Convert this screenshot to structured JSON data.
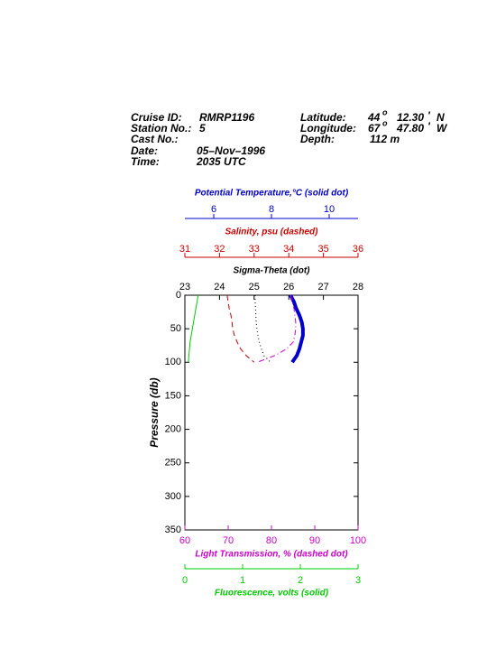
{
  "header": {
    "left": [
      {
        "label": "Cruise ID:",
        "value": "RMRP1196"
      },
      {
        "label": "Station No.:",
        "value": "5"
      },
      {
        "label": "Cast No.:"
      },
      {
        "label": "Date:",
        "value": "05–Nov–1996"
      },
      {
        "label": "Time:",
        "value": "2035 UTC"
      }
    ],
    "right": [
      {
        "label": "Latitude:",
        "degrees": "44",
        "degree_mark": "o",
        "minutes": "12.30",
        "minute_mark": "'",
        "hemisphere": "N"
      },
      {
        "label": "Longitude:",
        "degrees": "67",
        "degree_mark": "o",
        "minutes": "47.80",
        "minute_mark": "'",
        "hemisphere": "W"
      },
      {
        "label": "Depth:",
        "value": "112 m"
      }
    ]
  },
  "chart_data": {
    "type": "profile",
    "y_label": "Pressure (db)",
    "ylim": [
      0,
      350
    ],
    "yticks": [
      0,
      50,
      100,
      150,
      200,
      250,
      300,
      350
    ],
    "pressure": [
      0,
      10,
      20,
      30,
      40,
      50,
      60,
      70,
      80,
      90,
      100
    ],
    "x_axes": [
      {
        "label": "Potential Temperature,°C (solid dot)",
        "color": "#0000cc",
        "xlim": [
          5,
          11
        ],
        "xticks": [
          6,
          8,
          10
        ],
        "position": "top"
      },
      {
        "label": "Salinity, psu  (dashed)",
        "color": "#cc0000",
        "xlim": [
          31,
          36
        ],
        "xticks": [
          31,
          32,
          33,
          34,
          35,
          36
        ],
        "position": "top"
      },
      {
        "label": "Sigma-Theta (dot)",
        "color": "#000000",
        "xlim": [
          23,
          28
        ],
        "xticks": [
          23,
          24,
          25,
          26,
          27,
          28
        ],
        "position": "top"
      },
      {
        "label": "Light Transmission, % (dashed dot)",
        "color": "#cc00cc",
        "xlim": [
          60,
          100
        ],
        "xticks": [
          60,
          70,
          80,
          90,
          100
        ],
        "position": "bottom"
      },
      {
        "label": "Fluorescence, volts (solid)",
        "color": "#00cc00",
        "xlim": [
          0,
          3
        ],
        "xticks": [
          0,
          1,
          2,
          3
        ],
        "position": "bottom"
      }
    ],
    "series": [
      {
        "axis": 0,
        "color": "#0000cc",
        "line_style": "thick",
        "values": [
          8.66,
          8.78,
          8.86,
          8.97,
          9.05,
          9.09,
          9.09,
          9.03,
          8.97,
          8.88,
          8.72
        ]
      },
      {
        "axis": 1,
        "color": "#cc0000",
        "line_style": "dashed",
        "values": [
          32.22,
          32.25,
          32.28,
          32.33,
          32.36,
          32.38,
          32.43,
          32.51,
          32.61,
          32.77,
          33.0
        ]
      },
      {
        "axis": 2,
        "color": "#000000",
        "line_style": "dotted",
        "values": [
          25.03,
          25.03,
          25.04,
          25.05,
          25.06,
          25.08,
          25.11,
          25.15,
          25.21,
          25.28,
          25.47
        ]
      },
      {
        "axis": 3,
        "color": "#cc00cc",
        "line_style": "dashdot",
        "values": [
          84.4,
          84.8,
          85.2,
          85.4,
          85.6,
          85.6,
          85.4,
          85.0,
          83.5,
          80.8,
          76.7
        ]
      },
      {
        "axis": 4,
        "color": "#00cc00",
        "line_style": "solid",
        "values": [
          0.23,
          0.21,
          0.19,
          0.17,
          0.15,
          0.13,
          0.11,
          0.09,
          0.08,
          0.07,
          0.06
        ]
      }
    ]
  }
}
